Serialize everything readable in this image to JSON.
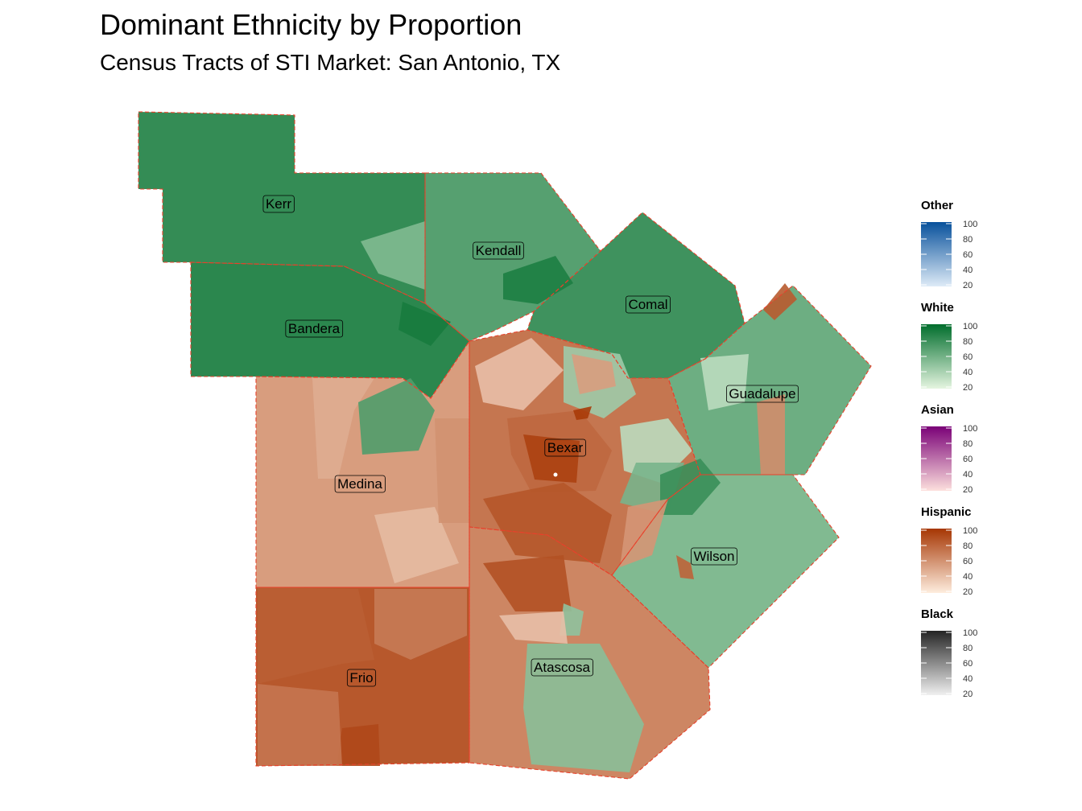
{
  "title": "Dominant Ethnicity by Proportion",
  "subtitle": "Census Tracts of STI Market: San Antonio, TX",
  "counties": [
    {
      "name": "Kerr",
      "dominant": "White",
      "level": 82
    },
    {
      "name": "Kendall",
      "dominant": "White",
      "level": 70
    },
    {
      "name": "Comal",
      "dominant": "White",
      "level": 78
    },
    {
      "name": "Bandera",
      "dominant": "White",
      "level": 85
    },
    {
      "name": "Guadalupe",
      "dominant": "White",
      "level": 62
    },
    {
      "name": "Bexar",
      "dominant": "Hispanic",
      "level": 72
    },
    {
      "name": "Medina",
      "dominant": "Hispanic",
      "level": 55
    },
    {
      "name": "Wilson",
      "dominant": "White",
      "level": 55
    },
    {
      "name": "Frio",
      "dominant": "Hispanic",
      "level": 85
    },
    {
      "name": "Atascosa",
      "dominant": "Hispanic",
      "level": 65
    }
  ],
  "legend": [
    {
      "title": "Other",
      "low": "#deebf7",
      "high": "#08519c",
      "ticks": [
        "100",
        "80",
        "60",
        "40",
        "20"
      ]
    },
    {
      "title": "White",
      "low": "#e5f5e0",
      "high": "#006d2c",
      "ticks": [
        "100",
        "80",
        "60",
        "40",
        "20"
      ]
    },
    {
      "title": "Asian",
      "low": "#fde0dd",
      "high": "#7a0177",
      "ticks": [
        "100",
        "80",
        "60",
        "40",
        "20"
      ]
    },
    {
      "title": "Hispanic",
      "low": "#feedde",
      "high": "#a63603",
      "ticks": [
        "100",
        "80",
        "60",
        "40",
        "20"
      ]
    },
    {
      "title": "Black",
      "low": "#f0f0f0",
      "high": "#252525",
      "ticks": [
        "100",
        "80",
        "60",
        "40",
        "20"
      ]
    }
  ]
}
